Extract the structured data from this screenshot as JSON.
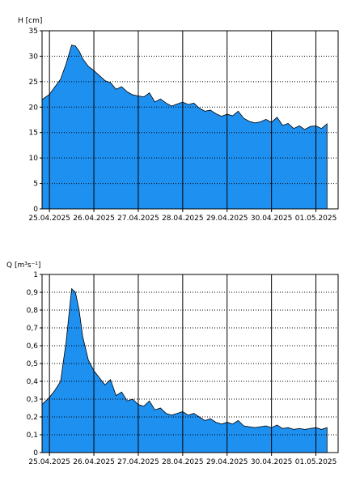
{
  "colors": {
    "area_fill": "#1E90F0",
    "area_stroke": "#000000",
    "grid": "#000000",
    "frame": "#000000",
    "background": "#FFFFFF"
  },
  "chart_data": [
    {
      "type": "area",
      "ylabel": "H [cm]",
      "ylim": [
        0,
        35
      ],
      "yticks": [
        0,
        5,
        10,
        15,
        20,
        25,
        30,
        35
      ],
      "xlim": [
        "2025-04-24T20:00",
        "2025-05-01T12:00"
      ],
      "xticks": [
        "2025-04-25",
        "2025-04-26",
        "2025-04-27",
        "2025-04-28",
        "2025-04-29",
        "2025-04-30",
        "2025-05-01"
      ],
      "xtick_labels": [
        "25.04.2025",
        "26.04.2025",
        "27.04.2025",
        "28.04.2025",
        "29.04.2025",
        "30.04.2025",
        "01.05.2025"
      ],
      "grid": {
        "vertical": "solid",
        "horizontal": "dotted"
      },
      "x": [
        "2025-04-24T20:00",
        "2025-04-25T00:00",
        "2025-04-25T03:00",
        "2025-04-25T06:00",
        "2025-04-25T09:00",
        "2025-04-25T12:00",
        "2025-04-25T14:00",
        "2025-04-25T16:00",
        "2025-04-25T18:00",
        "2025-04-25T21:00",
        "2025-04-26T00:00",
        "2025-04-26T03:00",
        "2025-04-26T06:00",
        "2025-04-26T09:00",
        "2025-04-26T12:00",
        "2025-04-26T15:00",
        "2025-04-26T18:00",
        "2025-04-26T21:00",
        "2025-04-27T00:00",
        "2025-04-27T03:00",
        "2025-04-27T06:00",
        "2025-04-27T09:00",
        "2025-04-27T12:00",
        "2025-04-27T15:00",
        "2025-04-27T18:00",
        "2025-04-27T21:00",
        "2025-04-28T00:00",
        "2025-04-28T03:00",
        "2025-04-28T06:00",
        "2025-04-28T09:00",
        "2025-04-28T12:00",
        "2025-04-28T15:00",
        "2025-04-28T18:00",
        "2025-04-28T21:00",
        "2025-04-29T00:00",
        "2025-04-29T03:00",
        "2025-04-29T06:00",
        "2025-04-29T09:00",
        "2025-04-29T12:00",
        "2025-04-29T15:00",
        "2025-04-29T18:00",
        "2025-04-29T21:00",
        "2025-04-30T00:00",
        "2025-04-30T03:00",
        "2025-04-30T06:00",
        "2025-04-30T09:00",
        "2025-04-30T12:00",
        "2025-04-30T15:00",
        "2025-04-30T18:00",
        "2025-04-30T21:00",
        "2025-05-01T00:00",
        "2025-05-01T03:00",
        "2025-05-01T06:00"
      ],
      "values": [
        21.5,
        22.5,
        24,
        25.5,
        28.5,
        32.2,
        32.0,
        31.0,
        29.5,
        28.0,
        27.2,
        26.2,
        25.2,
        24.8,
        23.5,
        24.0,
        23.0,
        22.4,
        22.2,
        22.0,
        22.8,
        21.0,
        21.6,
        20.8,
        20.2,
        20.6,
        21.0,
        20.5,
        20.8,
        19.8,
        19.2,
        19.4,
        18.7,
        18.2,
        18.6,
        18.3,
        19.2,
        17.8,
        17.2,
        16.9,
        17.1,
        17.6,
        17.0,
        18.0,
        16.4,
        16.8,
        15.8,
        16.3,
        15.6,
        16.2,
        16.3,
        15.8,
        16.7
      ]
    },
    {
      "type": "area",
      "ylabel": "Q [m³s⁻¹]",
      "ylim": [
        0,
        1
      ],
      "yticks": [
        0,
        0.1,
        0.2,
        0.3,
        0.4,
        0.5,
        0.6,
        0.7,
        0.8,
        0.9,
        1
      ],
      "ytick_labels": [
        "0",
        "0,1",
        "0,2",
        "0,3",
        "0,4",
        "0,5",
        "0,6",
        "0,7",
        "0,8",
        "0,9",
        "1"
      ],
      "xlim": [
        "2025-04-24T20:00",
        "2025-05-01T12:00"
      ],
      "xticks": [
        "2025-04-25",
        "2025-04-26",
        "2025-04-27",
        "2025-04-28",
        "2025-04-29",
        "2025-04-30",
        "2025-05-01"
      ],
      "xtick_labels": [
        "25.04.2025",
        "26.04.2025",
        "27.04.2025",
        "28.04.2025",
        "29.04.2025",
        "30.04.2025",
        "01.05.2025"
      ],
      "grid": {
        "vertical": "solid",
        "horizontal": "dotted"
      },
      "x": [
        "2025-04-24T20:00",
        "2025-04-25T00:00",
        "2025-04-25T03:00",
        "2025-04-25T06:00",
        "2025-04-25T09:00",
        "2025-04-25T12:00",
        "2025-04-25T14:00",
        "2025-04-25T16:00",
        "2025-04-25T18:00",
        "2025-04-25T21:00",
        "2025-04-26T00:00",
        "2025-04-26T03:00",
        "2025-04-26T06:00",
        "2025-04-26T09:00",
        "2025-04-26T12:00",
        "2025-04-26T15:00",
        "2025-04-26T18:00",
        "2025-04-26T21:00",
        "2025-04-27T00:00",
        "2025-04-27T03:00",
        "2025-04-27T06:00",
        "2025-04-27T09:00",
        "2025-04-27T12:00",
        "2025-04-27T15:00",
        "2025-04-27T18:00",
        "2025-04-27T21:00",
        "2025-04-28T00:00",
        "2025-04-28T03:00",
        "2025-04-28T06:00",
        "2025-04-28T09:00",
        "2025-04-28T12:00",
        "2025-04-28T15:00",
        "2025-04-28T18:00",
        "2025-04-28T21:00",
        "2025-04-29T00:00",
        "2025-04-29T03:00",
        "2025-04-29T06:00",
        "2025-04-29T09:00",
        "2025-04-29T12:00",
        "2025-04-29T15:00",
        "2025-04-29T18:00",
        "2025-04-29T21:00",
        "2025-04-30T00:00",
        "2025-04-30T03:00",
        "2025-04-30T06:00",
        "2025-04-30T09:00",
        "2025-04-30T12:00",
        "2025-04-30T15:00",
        "2025-04-30T18:00",
        "2025-04-30T21:00",
        "2025-05-01T00:00",
        "2025-05-01T03:00",
        "2025-05-01T06:00"
      ],
      "values": [
        0.27,
        0.31,
        0.35,
        0.4,
        0.62,
        0.92,
        0.9,
        0.8,
        0.65,
        0.52,
        0.46,
        0.42,
        0.38,
        0.41,
        0.32,
        0.34,
        0.29,
        0.3,
        0.27,
        0.26,
        0.29,
        0.24,
        0.25,
        0.22,
        0.21,
        0.22,
        0.23,
        0.21,
        0.22,
        0.2,
        0.18,
        0.19,
        0.17,
        0.16,
        0.17,
        0.16,
        0.18,
        0.15,
        0.145,
        0.14,
        0.145,
        0.15,
        0.14,
        0.155,
        0.135,
        0.14,
        0.13,
        0.135,
        0.13,
        0.135,
        0.14,
        0.13,
        0.14
      ]
    }
  ]
}
